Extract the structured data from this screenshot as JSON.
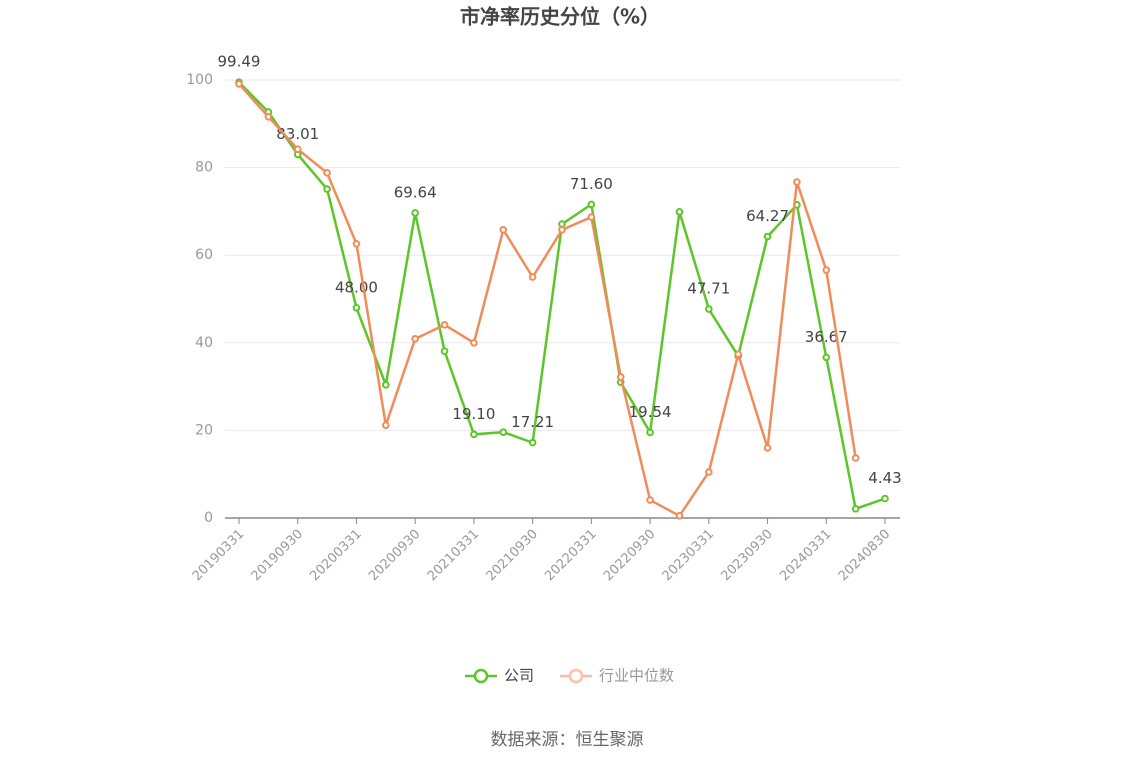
{
  "chart_data": {
    "type": "line",
    "title": "市净率历史分位（%）",
    "categories": [
      "20190331",
      null,
      "20190930",
      null,
      "20200331",
      null,
      "20200930",
      null,
      "20210331",
      null,
      "20210930",
      null,
      "20220331",
      null,
      "20220930",
      null,
      "20230331",
      null,
      "20230930",
      null,
      "20240331",
      null,
      "20240830"
    ],
    "series": [
      {
        "name": "公司",
        "color": "#5cc52a",
        "values": [
          99.49,
          92.7,
          83.01,
          75.1,
          48.0,
          30.4,
          69.64,
          38.1,
          19.1,
          19.6,
          17.21,
          67.1,
          71.6,
          31.0,
          19.54,
          69.9,
          47.71,
          37.0,
          64.27,
          71.5,
          36.67,
          2.1,
          4.43
        ],
        "value_labels": [
          "99.49",
          null,
          "83.01",
          null,
          "48.00",
          null,
          "69.64",
          null,
          "19.10",
          null,
          "17.21",
          null,
          "71.60",
          null,
          "19.54",
          null,
          "47.71",
          null,
          "64.27",
          null,
          "36.67",
          null,
          "4.43"
        ]
      },
      {
        "name": "行业中位数",
        "color": "#f08c5a",
        "values": [
          99.1,
          91.6,
          84.2,
          78.8,
          62.6,
          21.2,
          40.9,
          44.1,
          40.0,
          65.8,
          55.0,
          65.8,
          68.7,
          32.2,
          4.1,
          0.5,
          10.5,
          37.4,
          16.0,
          76.7,
          56.6,
          13.7,
          null
        ]
      }
    ],
    "ylim": [
      0,
      100
    ],
    "yticks": [
      0,
      20,
      40,
      60,
      80,
      100
    ],
    "grid": true,
    "legend": "bottom",
    "source": "数据来源：恒生聚源"
  }
}
